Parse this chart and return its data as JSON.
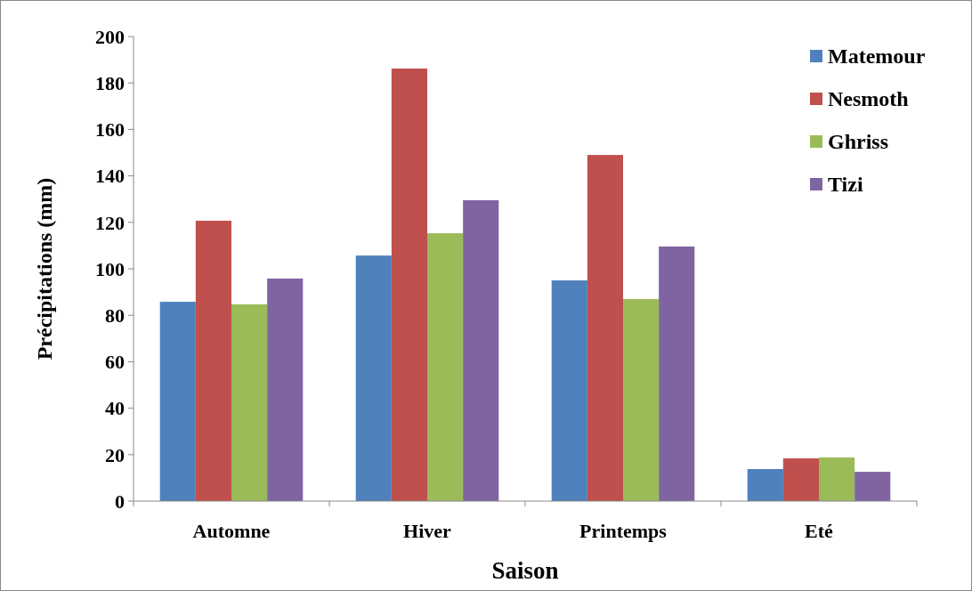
{
  "chart_data": {
    "type": "bar",
    "xlabel": "Saison",
    "ylabel": "Précipitations (mm)",
    "categories": [
      "Automne",
      "Hiver",
      "Printemps",
      "Eté"
    ],
    "series": [
      {
        "name": "Matemour",
        "color": "#4f81bd",
        "values": [
          85.8,
          105.7,
          95,
          13.8
        ]
      },
      {
        "name": "Nesmoth",
        "color": "#c0504d",
        "values": [
          120.7,
          186.2,
          149,
          18.4
        ]
      },
      {
        "name": "Ghriss",
        "color": "#9bbb59",
        "values": [
          84.7,
          115.3,
          87,
          18.8
        ]
      },
      {
        "name": "Tizi",
        "color": "#8064a2",
        "values": [
          95.8,
          129.5,
          109.6,
          12.6
        ]
      }
    ],
    "ylim": [
      0,
      200
    ],
    "yticks": [
      0,
      20,
      40,
      60,
      80,
      100,
      120,
      140,
      160,
      180,
      200
    ],
    "grid": false,
    "legend": "top right"
  }
}
